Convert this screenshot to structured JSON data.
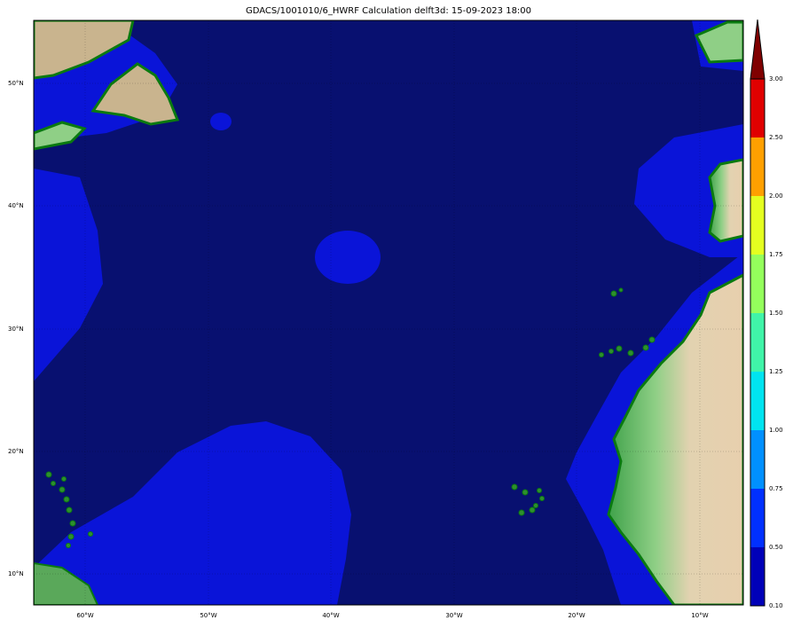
{
  "title": "GDACS/1001010/6_HWRF Calculation delft3d: 15-09-2023 18:00",
  "map": {
    "lon_labels": [
      "60°W",
      "50°W",
      "40°W",
      "30°W",
      "20°W",
      "10°W"
    ],
    "lat_labels": [
      "50°N",
      "40°N",
      "30°N",
      "20°N",
      "10°N"
    ],
    "ocean_color": "#081070",
    "wave_color_low": "#0a14d8"
  },
  "colorbar": {
    "tick_labels": [
      "0.10",
      "0.50",
      "0.75",
      "1.00",
      "1.25",
      "1.50",
      "1.75",
      "2.00",
      "2.50",
      "3.00"
    ],
    "colors": [
      "#0000b8",
      "#0030ff",
      "#0090ff",
      "#00e4f0",
      "#40f4a8",
      "#94ff5c",
      "#e4ff20",
      "#ffa000",
      "#e00000"
    ],
    "extend_color": "#800000"
  }
}
